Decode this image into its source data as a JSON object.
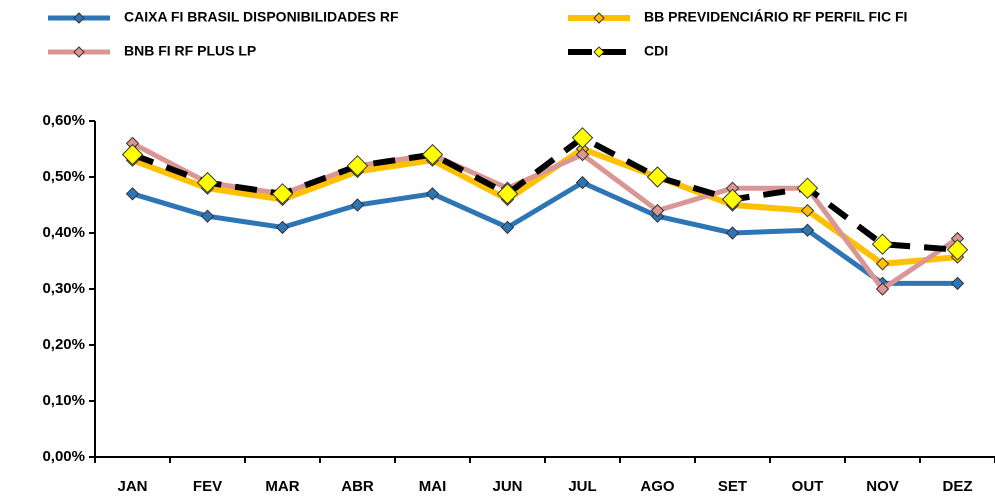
{
  "chart_data": {
    "type": "line",
    "categories": [
      "JAN",
      "FEV",
      "MAR",
      "ABR",
      "MAI",
      "JUN",
      "JUL",
      "AGO",
      "SET",
      "OUT",
      "NOV",
      "DEZ"
    ],
    "series": [
      {
        "name": "CAIXA FI BRASIL DISPONIBILIDADES RF",
        "color": "#2e75b6",
        "marker_color": "#2e75b6",
        "values": [
          0.47,
          0.43,
          0.41,
          0.45,
          0.47,
          0.41,
          0.49,
          0.43,
          0.4,
          0.405,
          0.31,
          0.31
        ]
      },
      {
        "name": "BB PREVIDENCIÁRIO RF PERFIL FIC FI",
        "color": "#ffc000",
        "marker_color": "#ffc000",
        "values": [
          0.53,
          0.48,
          0.46,
          0.51,
          0.53,
          0.46,
          0.55,
          0.5,
          0.45,
          0.44,
          0.345,
          0.357
        ]
      },
      {
        "name": "BNB FI RF PLUS LP",
        "color": "#d99694",
        "marker_color": "#d99694",
        "values": [
          0.56,
          0.49,
          0.47,
          0.52,
          0.54,
          0.48,
          0.54,
          0.44,
          0.48,
          0.48,
          0.3,
          0.39
        ]
      },
      {
        "name": "CDI",
        "color": "#000000",
        "marker_color": "#ffff00",
        "values": [
          0.54,
          0.49,
          0.47,
          0.52,
          0.54,
          0.47,
          0.57,
          0.5,
          0.46,
          0.48,
          0.38,
          0.37
        ]
      }
    ],
    "ylim": [
      0,
      0.6
    ],
    "yticks": [
      {
        "value": 0,
        "label": "0,00%"
      },
      {
        "value": 0.1,
        "label": "0,10%"
      },
      {
        "value": 0.2,
        "label": "0,20%"
      },
      {
        "value": 0.3,
        "label": "0,30%"
      },
      {
        "value": 0.4,
        "label": "0,40%"
      },
      {
        "value": 0.5,
        "label": "0,50%"
      },
      {
        "value": 0.6,
        "label": "0,60%"
      }
    ],
    "legend": "top",
    "grid": false
  }
}
